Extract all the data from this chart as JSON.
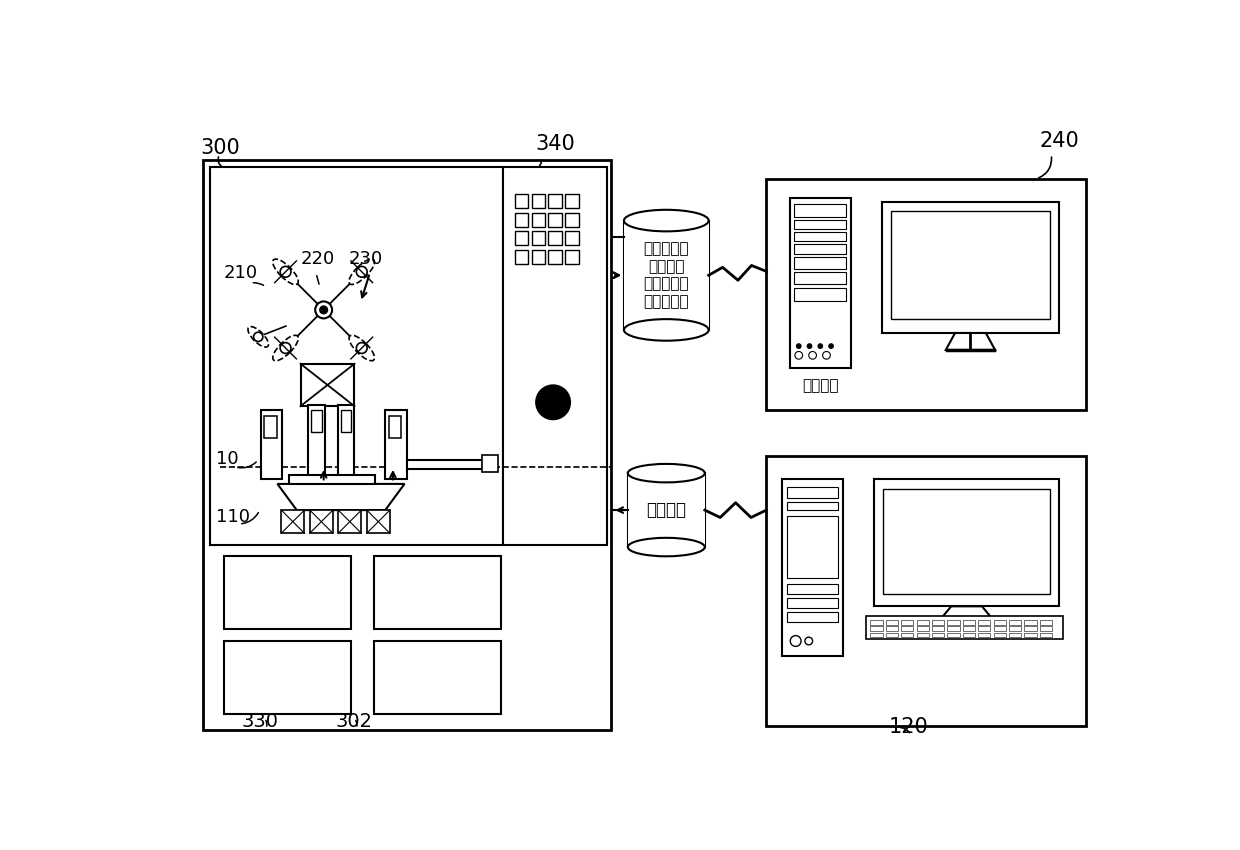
{
  "bg_color": "#ffffff",
  "lc": "#000000",
  "label_300": "300",
  "label_340": "340",
  "label_240": "240",
  "label_210": "210",
  "label_220": "220",
  "label_230": "230",
  "label_10": "10",
  "label_110": "110",
  "label_120": "120",
  "label_302": "302",
  "label_330": "330",
  "db_text": "力、力矩、\n电压、电\n流、转速、\n加速度信息",
  "ctrl_text": "控制指令",
  "domain_ctrl_text": "域控制器"
}
